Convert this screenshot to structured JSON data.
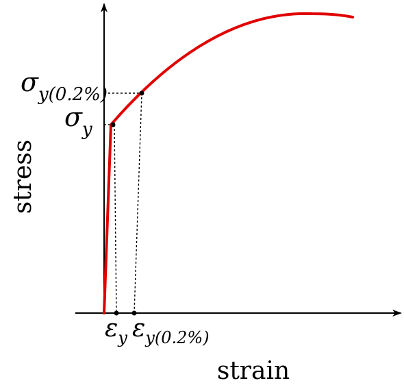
{
  "axes": {
    "x_label": "strain",
    "y_label": "stress"
  },
  "stress_labels": {
    "yield": {
      "symbol": "σ",
      "subscript": "y"
    },
    "offset_yield": {
      "symbol": "σ",
      "subscript": "y(0.2%)"
    }
  },
  "strain_labels": {
    "yield": {
      "symbol": "ε",
      "subscript": "y"
    },
    "offset_yield": {
      "symbol": "ε",
      "subscript": "y(0.2%)"
    }
  },
  "colors": {
    "curve": "#e00000",
    "axes": "#000000",
    "guides": "#000000"
  }
}
